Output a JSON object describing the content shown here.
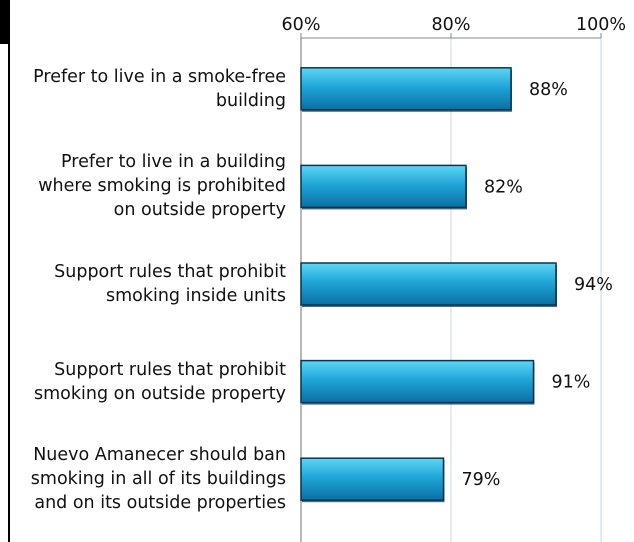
{
  "chart_data": {
    "type": "bar",
    "orientation": "horizontal",
    "categories": [
      "Prefer to live in a smoke-free building",
      "Prefer to live in a building where smoking is prohibited on outside property",
      "Support rules that prohibit smoking inside units",
      "Support rules that prohibit smoking on outside property",
      "Nuevo Amanecer should ban smoking in all of its buildings and on its outside properties"
    ],
    "category_lines": [
      [
        "Prefer to live in a smoke-free",
        "building"
      ],
      [
        "Prefer to live in a building",
        "where smoking is prohibited",
        "on outside property"
      ],
      [
        "Support rules that prohibit",
        "smoking inside units"
      ],
      [
        "Support rules that prohibit",
        "smoking on outside property"
      ],
      [
        "Nuevo Amanecer should ban",
        "smoking in all of its buildings",
        "and on its outside properties"
      ]
    ],
    "values": [
      88,
      82,
      94,
      91,
      79
    ],
    "data_labels": [
      "88%",
      "82%",
      "94%",
      "91%",
      "79%"
    ],
    "xlim": [
      60,
      100
    ],
    "x_ticks": [
      60,
      80,
      100
    ],
    "x_tick_labels": [
      "60%",
      "80%",
      "100%"
    ],
    "x_axis_position": "top",
    "grid": true,
    "bar_color": "#1fa6d8",
    "bar_color_light": "#5fd6f4",
    "bar_color_dark": "#0b6fa3",
    "grid_color": "#c5d9ea"
  }
}
